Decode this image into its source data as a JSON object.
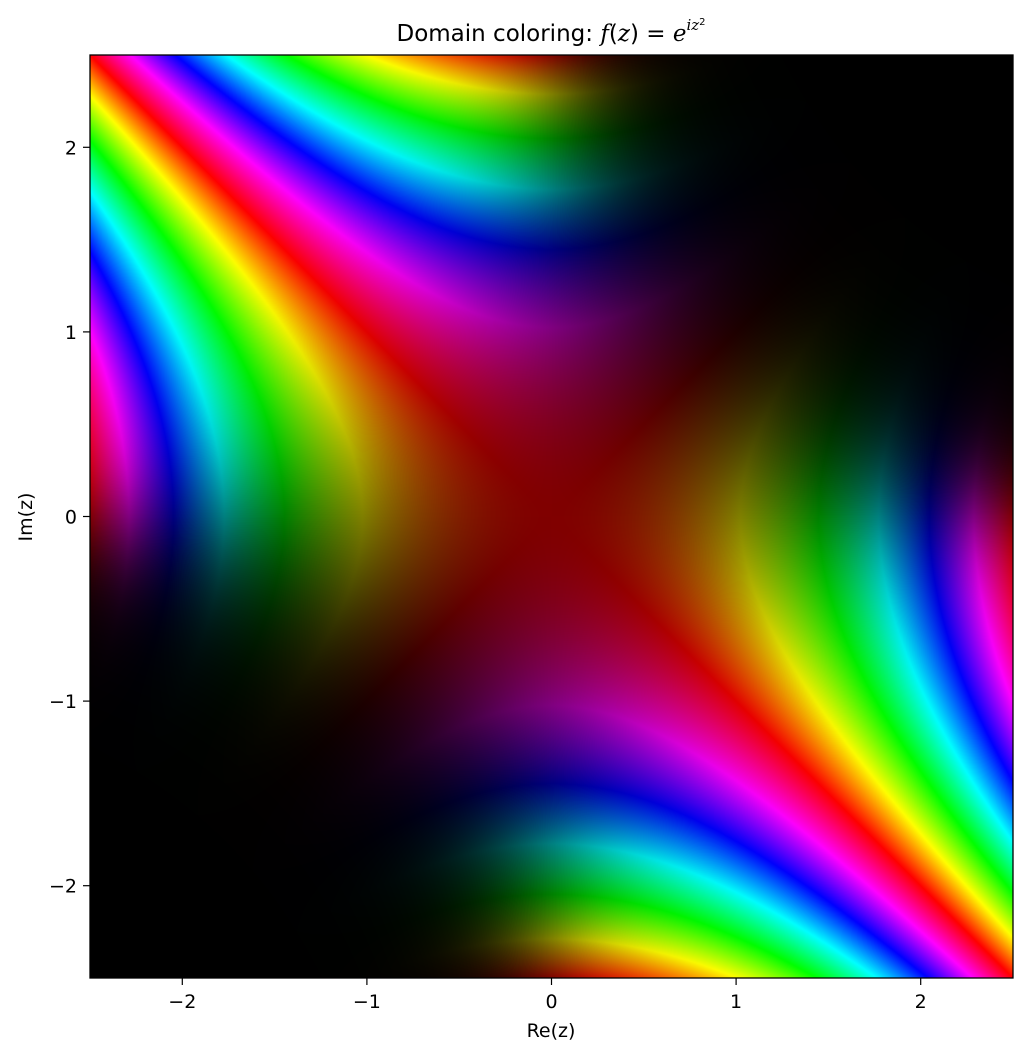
{
  "chart_data": {
    "type": "heatmap",
    "title": {
      "prefix": "Domain coloring: ",
      "f": "f",
      "lp": "(",
      "z": "z",
      "rp_eq": ") = ",
      "e": "e",
      "exp": "iz",
      "exp_power": "2"
    },
    "xlabel": "Re(z)",
    "ylabel": "Im(z)",
    "xlim": [
      -2.5,
      2.5
    ],
    "ylim": [
      -2.5,
      2.5
    ],
    "xticks": [
      {
        "value": -2,
        "label": "−2"
      },
      {
        "value": -1,
        "label": "−1"
      },
      {
        "value": 0,
        "label": "0"
      },
      {
        "value": 1,
        "label": "1"
      },
      {
        "value": 2,
        "label": "2"
      }
    ],
    "yticks": [
      {
        "value": -2,
        "label": "−2"
      },
      {
        "value": -1,
        "label": "−1"
      },
      {
        "value": 0,
        "label": "0"
      },
      {
        "value": 1,
        "label": "1"
      },
      {
        "value": 2,
        "label": "2"
      }
    ],
    "function": "exp(i*z^2)",
    "coloring": "hue = arg f, brightness = |f| / (1 + |f|)",
    "grid": false
  }
}
